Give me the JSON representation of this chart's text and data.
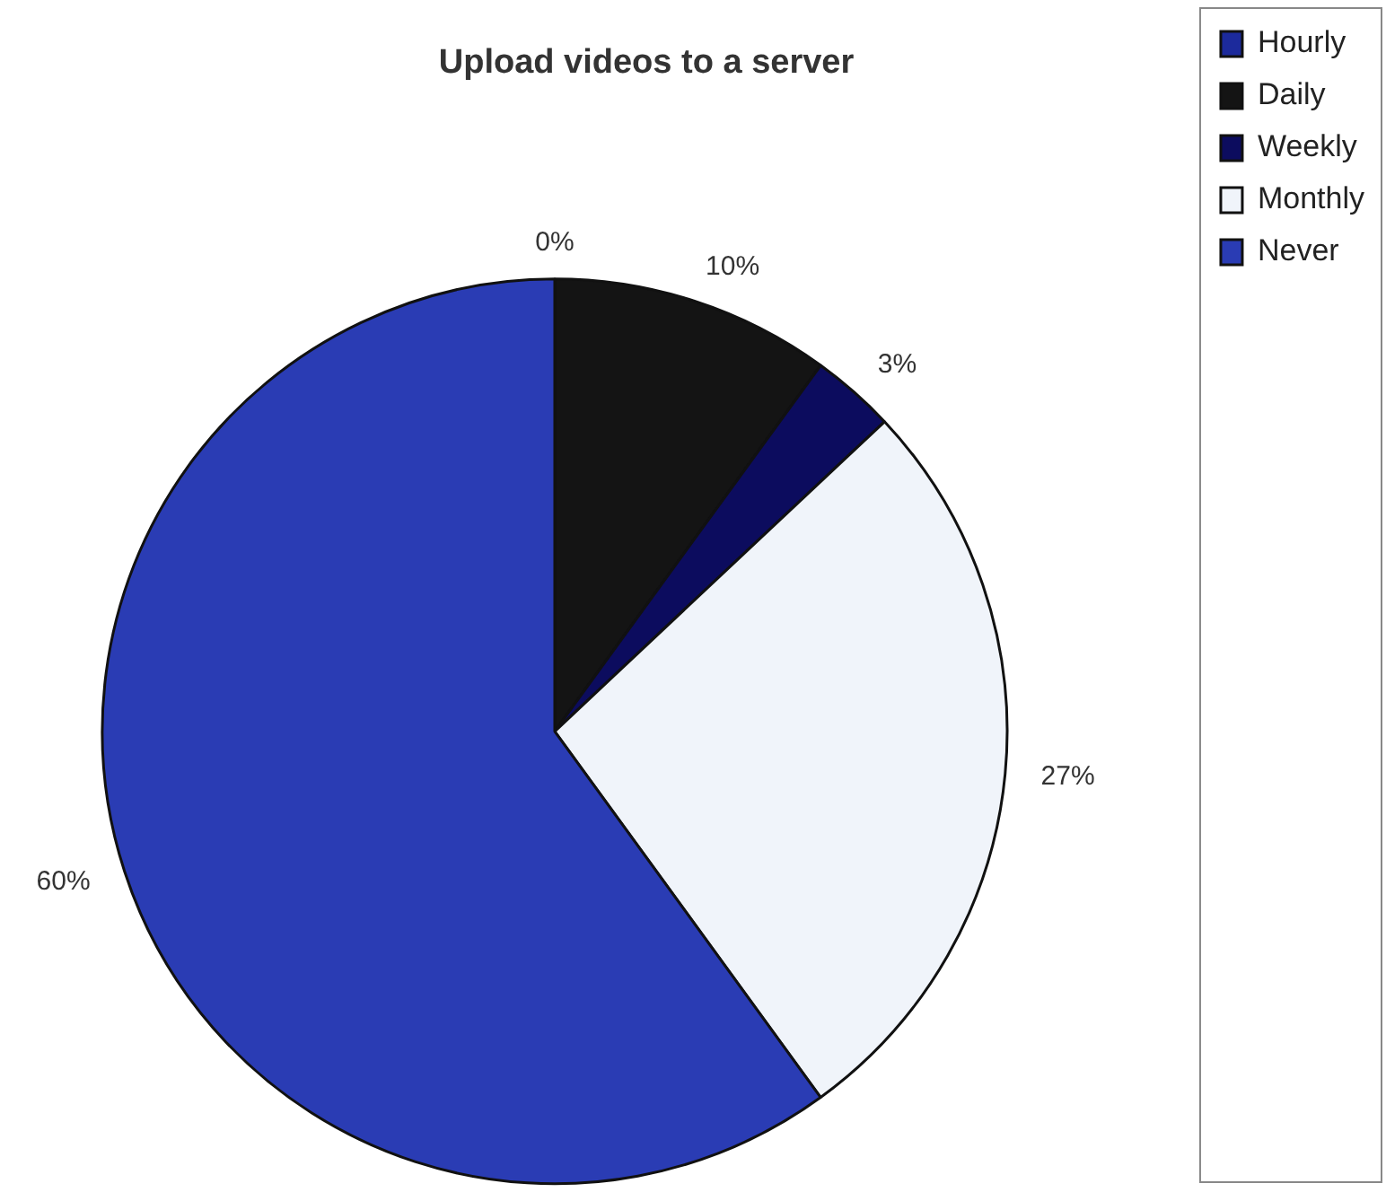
{
  "chart_data": {
    "type": "pie",
    "title": "Upload videos to a server",
    "categories": [
      "Hourly",
      "Daily",
      "Weekly",
      "Monthly",
      "Never"
    ],
    "values": [
      0,
      10,
      3,
      27,
      60
    ],
    "colors": [
      "#1c2a9c",
      "#141414",
      "#0c0c5e",
      "#f0f4fa",
      "#2a3cb4"
    ],
    "value_labels": [
      "0%",
      "10%",
      "3%",
      "27%",
      "60%"
    ],
    "legend": "top right"
  }
}
